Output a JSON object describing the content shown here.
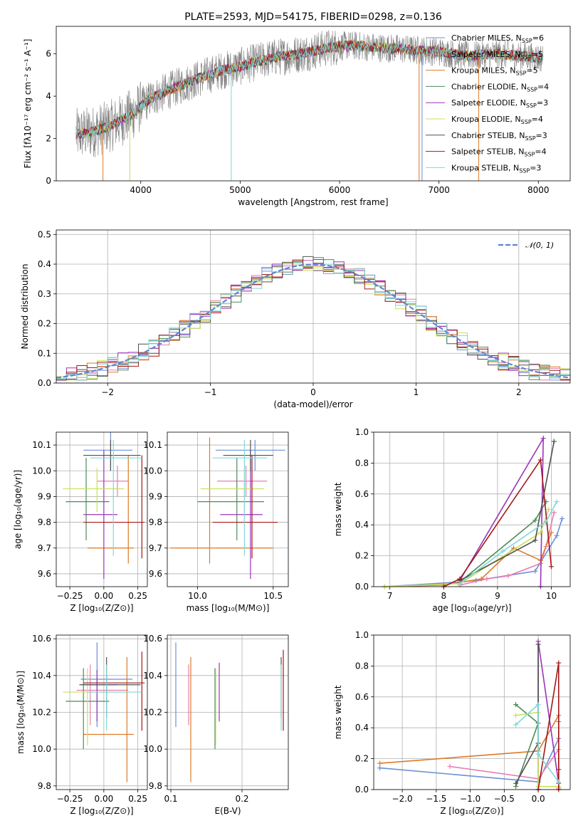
{
  "colors": [
    "#6b8fd6",
    "#e87db3",
    "#dd7b2a",
    "#4e8a5a",
    "#9b34b8",
    "#c9e05a",
    "#505050",
    "#a31818",
    "#80d8d8"
  ],
  "chart_data": [
    {
      "id": "spectrum",
      "type": "line",
      "title": "PLATE=2593, MJD=54175, FIBERID=0298, z=0.136",
      "xlabel": "wavelength [Angstrom, rest frame]",
      "ylabel": "Flux [fλ10⁻¹⁷ erg cm⁻² s⁻¹ A⁻¹]",
      "xlim": [
        3150,
        8320
      ],
      "ylim": [
        0,
        7.3
      ],
      "xticks": [
        "4000",
        "5000",
        "6000",
        "7000",
        "8000"
      ],
      "yticks": [
        "0",
        "2",
        "4",
        "6"
      ],
      "xticks_v": [
        4000,
        5000,
        6000,
        7000,
        8000
      ],
      "yticks_v": [
        0,
        2,
        4,
        6
      ],
      "grid": false,
      "legend_position": "top-right",
      "spectrum_continuum": {
        "x": [
          3350,
          3500,
          3700,
          3900,
          4100,
          4300,
          4500,
          4800,
          5000,
          5300,
          5600,
          5900,
          6100,
          6400,
          6700,
          7000,
          7300,
          7600,
          8050
        ],
        "y": [
          2.2,
          2.3,
          2.6,
          3.1,
          3.9,
          4.3,
          4.7,
          5.2,
          5.4,
          5.8,
          6.0,
          6.3,
          6.4,
          6.3,
          6.2,
          6.1,
          5.9,
          6.0,
          5.8
        ]
      },
      "legend": [
        {
          "label": "Chabrier MILES, N",
          "sub": "SSP",
          "eq": "=6"
        },
        {
          "label": "Salpeter MILES, N",
          "sub": "SSP",
          "eq": "=5"
        },
        {
          "label": "Kroupa MILES, N",
          "sub": "SSP",
          "eq": "=5"
        },
        {
          "label": "Chabrier ELODIE, N",
          "sub": "SSP",
          "eq": "=4"
        },
        {
          "label": "Salpeter ELODIE, N",
          "sub": "SSP",
          "eq": "=3"
        },
        {
          "label": "Kroupa ELODIE, N",
          "sub": "SSP",
          "eq": "=4"
        },
        {
          "label": "Chabrier STELIB, N",
          "sub": "SSP",
          "eq": "=3"
        },
        {
          "label": "Salpeter STELIB, N",
          "sub": "SSP",
          "eq": "=4"
        },
        {
          "label": "Kroupa STELIB, N",
          "sub": "SSP",
          "eq": "=3"
        }
      ]
    },
    {
      "id": "residuals",
      "type": "line",
      "xlabel": "(data-model)/error",
      "ylabel": "Normed distribution",
      "xlim": [
        -2.5,
        2.5
      ],
      "ylim": [
        0,
        0.515
      ],
      "xticks": [
        "−2",
        "−1",
        "0",
        "1",
        "2"
      ],
      "yticks": [
        "0.0",
        "0.1",
        "0.2",
        "0.3",
        "0.4",
        "0.5"
      ],
      "xticks_v": [
        -2,
        -1,
        0,
        1,
        2
      ],
      "yticks_v": [
        0,
        0.1,
        0.2,
        0.3,
        0.4,
        0.5
      ],
      "grid": true,
      "legend_label": "𝒩(0, 1)",
      "legend_position": "top-right",
      "bin_width": 0.1,
      "bin_start": -2.5
    },
    {
      "id": "age_vs_Z",
      "type": "scatter",
      "xlabel": "Z [log₁₀(Z/Z⊙)]",
      "ylabel": "age  [log₁₀(age/yr)]",
      "xlim": [
        -0.35,
        0.32
      ],
      "ylim": [
        9.55,
        10.15
      ],
      "xticks": [
        "−0.25",
        "0.00",
        "0.25"
      ],
      "xticks_v": [
        -0.25,
        0,
        0.25
      ],
      "yticks": [
        "9.6",
        "9.7",
        "9.8",
        "9.9",
        "10.0",
        "10.1"
      ],
      "yticks_v": [
        9.6,
        9.7,
        9.8,
        9.9,
        10.0,
        10.1
      ],
      "grid": true,
      "points": [
        {
          "x": 0.05,
          "y": 10.08,
          "ex": [
            -0.15,
            0.21
          ],
          "ey": [
            10.0,
            10.15
          ]
        },
        {
          "x": 0.1,
          "y": 9.96,
          "ex": [
            -0.05,
            0.18
          ],
          "ey": [
            9.9,
            10.02
          ]
        },
        {
          "x": 0.18,
          "y": 9.7,
          "ex": [
            -0.12,
            0.22
          ],
          "ey": [
            9.64,
            10.06
          ]
        },
        {
          "x": -0.13,
          "y": 9.88,
          "ex": [
            -0.28,
            0.04
          ],
          "ey": [
            9.73,
            10.05
          ]
        },
        {
          "x": 0.0,
          "y": 9.83,
          "ex": [
            -0.15,
            0.1
          ],
          "ey": [
            9.58,
            10.08
          ]
        },
        {
          "x": -0.05,
          "y": 9.93,
          "ex": [
            -0.3,
            0.15
          ],
          "ey": [
            9.84,
            10.01
          ]
        },
        {
          "x": 0.05,
          "y": 10.06,
          "ex": [
            -0.15,
            0.27
          ],
          "ey": [
            10.0,
            10.12
          ]
        },
        {
          "x": 0.28,
          "y": 9.8,
          "ex": [
            -0.15,
            0.3
          ],
          "ey": [
            9.66,
            10.06
          ]
        },
        {
          "x": 0.07,
          "y": 10.05,
          "ex": [
            -0.1,
            0.28
          ],
          "ey": [
            9.67,
            10.12
          ]
        }
      ]
    },
    {
      "id": "age_vs_mass",
      "type": "scatter",
      "xlabel": "mass [log₁₀(M/M⊙)]",
      "ylabel": "",
      "xlim": [
        9.8,
        10.6
      ],
      "ylim": [
        9.55,
        10.15
      ],
      "xticks": [
        "10.0",
        "10.5"
      ],
      "xticks_v": [
        10.0,
        10.5
      ],
      "yticks": [
        "9.6",
        "9.7",
        "9.8",
        "9.9",
        "10.0",
        "10.1"
      ],
      "yticks_v": [
        9.6,
        9.7,
        9.8,
        9.9,
        10.0,
        10.1
      ],
      "grid": true,
      "points": [
        {
          "x": 10.38,
          "y": 10.08,
          "ex": [
            10.12,
            10.58
          ],
          "ey": [
            10.0,
            10.12
          ]
        },
        {
          "x": 10.32,
          "y": 9.96,
          "ex": [
            10.13,
            10.46
          ],
          "ey": [
            9.9,
            10.02
          ]
        },
        {
          "x": 10.08,
          "y": 9.7,
          "ex": [
            9.82,
            10.5
          ],
          "ey": [
            9.64,
            10.13
          ]
        },
        {
          "x": 10.26,
          "y": 9.88,
          "ex": [
            10.0,
            10.44
          ],
          "ey": [
            9.73,
            10.05
          ]
        },
        {
          "x": 10.35,
          "y": 9.83,
          "ex": [
            10.15,
            10.43
          ],
          "ey": [
            9.58,
            10.08
          ]
        },
        {
          "x": 10.31,
          "y": 9.93,
          "ex": [
            10.02,
            10.44
          ],
          "ey": [
            9.84,
            10.01
          ]
        },
        {
          "x": 10.35,
          "y": 10.06,
          "ex": [
            10.17,
            10.5
          ],
          "ey": [
            10.0,
            10.12
          ]
        },
        {
          "x": 10.36,
          "y": 9.8,
          "ex": [
            10.1,
            10.53
          ],
          "ey": [
            9.66,
            10.06
          ]
        },
        {
          "x": 10.31,
          "y": 10.05,
          "ex": [
            10.1,
            10.46
          ],
          "ey": [
            9.67,
            10.12
          ]
        }
      ]
    },
    {
      "id": "weight_vs_age",
      "type": "line",
      "xlabel": "age  [log₁₀(age/yr)]",
      "ylabel": "mass weight",
      "xlim": [
        6.7,
        10.35
      ],
      "ylim": [
        0,
        1.0
      ],
      "xticks": [
        "7",
        "8",
        "9",
        "10"
      ],
      "xticks_v": [
        7,
        8,
        9,
        10
      ],
      "yticks": [
        "0.0",
        "0.2",
        "0.4",
        "0.6",
        "0.8",
        "1.0"
      ],
      "yticks_v": [
        0,
        0.2,
        0.4,
        0.6,
        0.8,
        1.0
      ],
      "grid": true,
      "series": [
        {
          "x": [
            6.9,
            8.3,
            8.6,
            9.7,
            10.1,
            10.2
          ],
          "y": [
            0.0,
            0.03,
            0.04,
            0.1,
            0.33,
            0.44
          ]
        },
        {
          "x": [
            8.3,
            8.8,
            9.2,
            9.8,
            9.9,
            10.05
          ],
          "y": [
            0.01,
            0.05,
            0.07,
            0.15,
            0.26,
            0.48
          ]
        },
        {
          "x": [
            6.9,
            8.0,
            8.7,
            9.3,
            9.8,
            10.0
          ],
          "y": [
            0.0,
            0.01,
            0.05,
            0.25,
            0.17,
            0.35
          ]
        },
        {
          "x": [
            8.3,
            9.7,
            9.9
          ],
          "y": [
            0.03,
            0.43,
            0.55
          ]
        },
        {
          "x": [
            8.3,
            9.85,
            9.8
          ],
          "y": [
            0.04,
            0.96,
            0.0
          ]
        },
        {
          "x": [
            6.9,
            8.3,
            9.8,
            9.95
          ],
          "y": [
            0.0,
            0.02,
            0.35,
            0.5
          ]
        },
        {
          "x": [
            8.3,
            9.7,
            10.05
          ],
          "y": [
            0.04,
            0.3,
            0.94
          ]
        },
        {
          "x": [
            8.0,
            8.3,
            9.8,
            10.0
          ],
          "y": [
            0.0,
            0.05,
            0.82,
            0.13
          ]
        },
        {
          "x": [
            8.3,
            9.1,
            9.9,
            10.1
          ],
          "y": [
            0.02,
            0.23,
            0.42,
            0.55
          ]
        }
      ]
    },
    {
      "id": "mass_vs_Z",
      "type": "scatter",
      "xlabel": "Z [log₁₀(Z/Z⊙)]",
      "ylabel": "mass [log₁₀(M/M⊙)]",
      "xlim": [
        -0.35,
        0.32
      ],
      "ylim": [
        9.78,
        10.62
      ],
      "xticks": [
        "−0.25",
        "0.00",
        "0.25"
      ],
      "xticks_v": [
        -0.25,
        0,
        0.25
      ],
      "yticks": [
        "9.8",
        "10.0",
        "10.2",
        "10.4",
        "10.6"
      ],
      "yticks_v": [
        9.8,
        10.0,
        10.2,
        10.4,
        10.6
      ],
      "grid": true,
      "points": [
        {
          "x": -0.05,
          "y": 10.38,
          "ex": [
            -0.17,
            0.21
          ],
          "ey": [
            10.12,
            10.58
          ]
        },
        {
          "x": -0.1,
          "y": 10.32,
          "ex": [
            -0.2,
            0.18
          ],
          "ey": [
            10.13,
            10.46
          ]
        },
        {
          "x": 0.17,
          "y": 10.08,
          "ex": [
            -0.15,
            0.22
          ],
          "ey": [
            9.82,
            10.5
          ]
        },
        {
          "x": -0.15,
          "y": 10.26,
          "ex": [
            -0.28,
            0.04
          ],
          "ey": [
            10.0,
            10.44
          ]
        },
        {
          "x": -0.05,
          "y": 10.35,
          "ex": [
            -0.15,
            0.1
          ],
          "ey": [
            10.15,
            10.43
          ]
        },
        {
          "x": -0.12,
          "y": 10.31,
          "ex": [
            -0.3,
            0.15
          ],
          "ey": [
            10.02,
            10.44
          ]
        },
        {
          "x": 0.02,
          "y": 10.35,
          "ex": [
            -0.18,
            0.27
          ],
          "ey": [
            10.17,
            10.5
          ]
        },
        {
          "x": 0.28,
          "y": 10.36,
          "ex": [
            -0.15,
            0.3
          ],
          "ey": [
            10.1,
            10.53
          ]
        },
        {
          "x": 0.02,
          "y": 10.31,
          "ex": [
            -0.12,
            0.28
          ],
          "ey": [
            10.1,
            10.46
          ]
        }
      ]
    },
    {
      "id": "mass_vs_EBV",
      "type": "scatter",
      "xlabel": "E(B-V)",
      "ylabel": "",
      "xlim": [
        0.095,
        0.265
      ],
      "ylim": [
        9.78,
        10.62
      ],
      "xticks": [
        "0.1",
        "0.2"
      ],
      "xticks_v": [
        0.1,
        0.2
      ],
      "yticks": [
        "9.8",
        "10.0",
        "10.2",
        "10.4",
        "10.6"
      ],
      "yticks_v": [
        9.8,
        10.0,
        10.2,
        10.4,
        10.6
      ],
      "grid": true,
      "points": [
        {
          "x": 0.107,
          "y": 10.38,
          "ey": [
            10.12,
            10.58
          ]
        },
        {
          "x": 0.125,
          "y": 10.32,
          "ey": [
            10.13,
            10.46
          ]
        },
        {
          "x": 0.128,
          "y": 10.08,
          "ey": [
            9.82,
            10.5
          ]
        },
        {
          "x": 0.162,
          "y": 10.26,
          "ey": [
            10.0,
            10.44
          ]
        },
        {
          "x": 0.168,
          "y": 10.35,
          "ey": [
            10.15,
            10.47
          ]
        },
        {
          "x": 0.163,
          "y": 10.31,
          "ey": [
            10.02,
            10.44
          ]
        },
        {
          "x": 0.255,
          "y": 10.35,
          "ey": [
            10.17,
            10.5
          ]
        },
        {
          "x": 0.258,
          "y": 10.36,
          "ey": [
            10.1,
            10.54
          ]
        },
        {
          "x": 0.255,
          "y": 10.31,
          "ey": [
            10.1,
            10.46
          ]
        }
      ]
    },
    {
      "id": "weight_vs_Z",
      "type": "line",
      "xlabel": "Z [log₁₀(Z/Z⊙)]",
      "ylabel": "mass weight",
      "xlim": [
        -2.42,
        0.47
      ],
      "ylim": [
        0,
        1.0
      ],
      "xticks": [
        "−2.0",
        "−1.5",
        "−1.0",
        "−0.5",
        "0.0"
      ],
      "xticks_v": [
        -2.0,
        -1.5,
        -1.0,
        -0.5,
        0.0
      ],
      "yticks": [
        "0.0",
        "0.2",
        "0.4",
        "0.6",
        "0.8",
        "1.0"
      ],
      "yticks_v": [
        0,
        0.2,
        0.4,
        0.6,
        0.8,
        1.0
      ],
      "grid": true,
      "series": [
        {
          "x": [
            -2.33,
            0.0,
            0.3,
            0.3
          ],
          "y": [
            0.14,
            0.05,
            0.33,
            0.44
          ]
        },
        {
          "x": [
            -1.3,
            0.0,
            0.3,
            0.3
          ],
          "y": [
            0.15,
            0.07,
            0.26,
            0.01
          ]
        },
        {
          "x": [
            -2.33,
            0.0,
            0.3,
            0.3
          ],
          "y": [
            0.17,
            0.25,
            0.48,
            0.02
          ]
        },
        {
          "x": [
            -0.33,
            0.0,
            -0.33
          ],
          "y": [
            0.55,
            0.43,
            0.02
          ]
        },
        {
          "x": [
            0.0,
            0.0,
            0.3
          ],
          "y": [
            0.0,
            0.96,
            0.04
          ]
        },
        {
          "x": [
            -0.33,
            0.0,
            0.0,
            0.3
          ],
          "y": [
            0.48,
            0.5,
            0.02,
            0.02
          ]
        },
        {
          "x": [
            -0.33,
            0.0,
            0.0
          ],
          "y": [
            0.04,
            0.3,
            0.94
          ]
        },
        {
          "x": [
            0.0,
            0.3,
            0.3,
            0.3
          ],
          "y": [
            0.0,
            0.82,
            0.13,
            0.0
          ]
        },
        {
          "x": [
            -0.33,
            0.0,
            0.0,
            0.3
          ],
          "y": [
            0.42,
            0.55,
            0.23,
            0.05
          ]
        }
      ]
    }
  ]
}
